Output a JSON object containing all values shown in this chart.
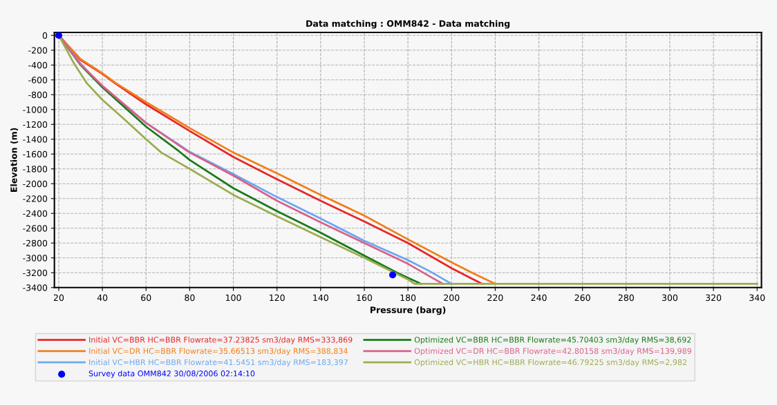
{
  "chart_data": {
    "type": "line",
    "title": "Data matching : OMM842 - Data matching",
    "xlabel": "Pressure (barg)",
    "ylabel": "Elevation (m)",
    "xlim": [
      18,
      342
    ],
    "ylim": [
      -3400,
      40
    ],
    "xticks": [
      20,
      40,
      60,
      80,
      100,
      120,
      140,
      160,
      180,
      200,
      220,
      240,
      260,
      280,
      300,
      320,
      340
    ],
    "yticks": [
      0,
      -200,
      -400,
      -600,
      -800,
      -1000,
      -1200,
      -1400,
      -1600,
      -1800,
      -2000,
      -2200,
      -2400,
      -2600,
      -2800,
      -3000,
      -3200,
      -3400
    ],
    "grid": true,
    "legend": "bottom",
    "line_style": "solid",
    "series": [
      {
        "name": "Initial VC=BBR HC=BBR Flowrate=37.23825 sm3/day RMS=333,869",
        "color": "#e8262a",
        "x": [
          20,
          30,
          40,
          46,
          60,
          80,
          100,
          120,
          140,
          160,
          180,
          200,
          210,
          214
        ],
        "values": [
          0,
          -330,
          -520,
          -650,
          -930,
          -1290,
          -1640,
          -1940,
          -2230,
          -2510,
          -2800,
          -3140,
          -3290,
          -3350
        ]
      },
      {
        "name": "Initial VC=DR HC=BBR Flowrate=35.66513 sm3/day RMS=388,834",
        "color": "#f07f19",
        "x": [
          20,
          30,
          40,
          46,
          60,
          80,
          100,
          120,
          140,
          160,
          180,
          200,
          210,
          220
        ],
        "values": [
          0,
          -320,
          -510,
          -640,
          -900,
          -1250,
          -1580,
          -1860,
          -2150,
          -2430,
          -2750,
          -3060,
          -3210,
          -3350
        ]
      },
      {
        "name": "Initial VC=HBR HC=BBR Flowrate=41.5451 sm3/day RMS=183,397",
        "color": "#6aa8f0",
        "x": [
          20,
          30,
          40,
          60,
          80,
          100,
          120,
          140,
          160,
          180,
          190,
          200
        ],
        "values": [
          0,
          -380,
          -700,
          -1180,
          -1570,
          -1870,
          -2180,
          -2470,
          -2770,
          -3030,
          -3180,
          -3350
        ]
      },
      {
        "name": "Survey data OMM842 30/08/2006 02:14:10",
        "color": "#0000ff",
        "type": "scatter",
        "marker": "circle",
        "x": [
          20,
          173
        ],
        "values": [
          0,
          -3230
        ]
      },
      {
        "name": "Optimized VC=BBR HC=BBR Flowrate=45.70403 sm3/day RMS=38,692",
        "color": "#1a7a1a",
        "x": [
          20,
          30,
          40,
          60,
          75,
          80,
          100,
          120,
          140,
          160,
          175,
          186
        ],
        "values": [
          0,
          -400,
          -700,
          -1230,
          -1560,
          -1680,
          -2060,
          -2370,
          -2660,
          -2970,
          -3200,
          -3350
        ]
      },
      {
        "name": "Optimized VC=DR HC=BBR Flowrate=42.80158 sm3/day RMS=139,989",
        "color": "#d9608a",
        "x": [
          20,
          30,
          40,
          60,
          80,
          100,
          120,
          140,
          160,
          180,
          190,
          196
        ],
        "values": [
          0,
          -390,
          -680,
          -1180,
          -1580,
          -1890,
          -2230,
          -2520,
          -2800,
          -3080,
          -3250,
          -3350
        ]
      },
      {
        "name": "Optimized VC=HBR HC=BBR Flowrate=46.79225 sm3/day RMS=2,982",
        "color": "#9aad50",
        "x": [
          20,
          27,
          33,
          40,
          50,
          60,
          67,
          80,
          100,
          120,
          140,
          160,
          180,
          183,
          340
        ],
        "values": [
          0,
          -380,
          -650,
          -870,
          -1130,
          -1400,
          -1580,
          -1800,
          -2150,
          -2440,
          -2720,
          -3000,
          -3290,
          -3350,
          -3350
        ]
      }
    ]
  }
}
